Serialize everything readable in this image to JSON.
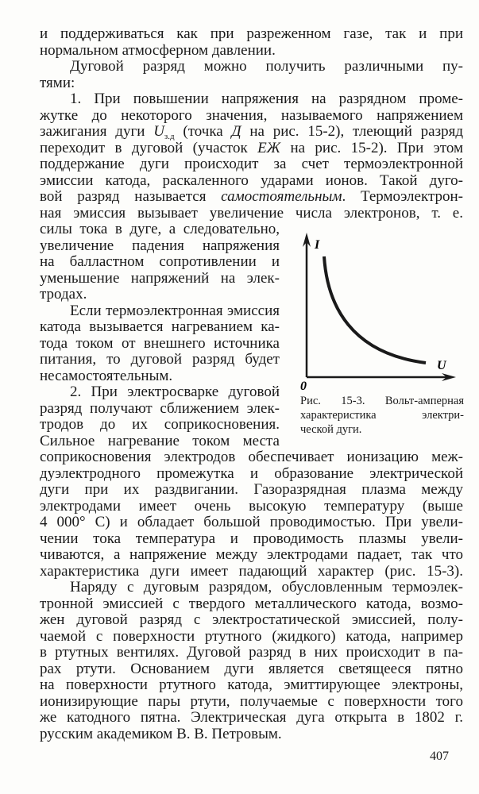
{
  "page": {
    "lines": [
      {
        "seg": [
          {
            "t": "и поддерживаться как при разреженном газе, так и при"
          }
        ]
      },
      {
        "seg": [
          {
            "t": "нормальном атмосферном давлении."
          }
        ],
        "last": true
      },
      {
        "seg": [
          {
            "t": "Дуговой разряд можно получить различными пу-"
          }
        ],
        "ind": true
      },
      {
        "seg": [
          {
            "t": "тями:"
          }
        ],
        "last": true
      },
      {
        "seg": [
          {
            "t": "1. При повышении напряжения на разрядном проме-"
          }
        ],
        "ind": true
      },
      {
        "seg": [
          {
            "t": "жутке до некоторого значения, называемого напряжением"
          }
        ]
      },
      {
        "seg": [
          {
            "t": "зажигания дуги "
          },
          {
            "t": "U",
            "s": "i"
          },
          {
            "t": "з.д",
            "s": "sub"
          },
          {
            "t": " (точка "
          },
          {
            "t": "Д",
            "s": "i"
          },
          {
            "t": " на рис. 15-2), тлеющий разряд"
          }
        ]
      },
      {
        "seg": [
          {
            "t": "переходит в дуговой (участок "
          },
          {
            "t": "ЕЖ",
            "s": "i"
          },
          {
            "t": " на рис. 15-2). При этом"
          }
        ]
      },
      {
        "seg": [
          {
            "t": "поддержание дуги происходит за счет термоэлектронной"
          }
        ]
      },
      {
        "seg": [
          {
            "t": "эмиссии катода, раскаленного ударами ионов. Такой дуго-"
          }
        ]
      },
      {
        "seg": [
          {
            "t": "вой разряд называется "
          },
          {
            "t": "самостоятельным",
            "s": "i"
          },
          {
            "t": ". Термоэлектрон-"
          }
        ]
      },
      {
        "seg": [
          {
            "t": "ная эмиссия вызывает увеличение числа электронов, т. е."
          }
        ]
      },
      {
        "seg": [
          {
            "t": "силы тока в дуге, а следовательно,"
          }
        ],
        "narrow": true
      },
      {
        "seg": [
          {
            "t": "увеличение падения напряжения"
          }
        ],
        "narrow": true
      },
      {
        "seg": [
          {
            "t": "на балластном сопротивлении и"
          }
        ],
        "narrow": true
      },
      {
        "seg": [
          {
            "t": "уменьшение напряжений на элек-"
          }
        ],
        "narrow": true
      },
      {
        "seg": [
          {
            "t": "тродах."
          }
        ],
        "narrow": true,
        "last": true
      },
      {
        "seg": [
          {
            "t": "Если термоэлектронная эмиссия"
          }
        ],
        "narrow": true,
        "ind": true
      },
      {
        "seg": [
          {
            "t": "катода вызывается нагреванием ка-"
          }
        ],
        "narrow": true
      },
      {
        "seg": [
          {
            "t": "тода током от внешнего источника"
          }
        ],
        "narrow": true
      },
      {
        "seg": [
          {
            "t": "питания, то дуговой разряд будет"
          }
        ],
        "narrow": true
      },
      {
        "seg": [
          {
            "t": "несамостоятельным."
          }
        ],
        "narrow": true,
        "last": true
      },
      {
        "seg": [
          {
            "t": "2. При электросварке дуговой"
          }
        ],
        "narrow": true,
        "ind": true
      },
      {
        "seg": [
          {
            "t": "разряд получают сближением элек-"
          }
        ],
        "narrow": true
      },
      {
        "seg": [
          {
            "t": "тродов до их соприкосновения."
          }
        ],
        "narrow": true
      },
      {
        "seg": [
          {
            "t": "Сильное нагревание током места"
          }
        ],
        "narrow": true
      },
      {
        "seg": [
          {
            "t": "соприкосновения электродов обеспечивает ионизацию меж-"
          }
        ]
      },
      {
        "seg": [
          {
            "t": "дуэлектродного промежутка и образование электрической"
          }
        ]
      },
      {
        "seg": [
          {
            "t": "дуги при их раздвигании. Газоразрядная плазма между"
          }
        ]
      },
      {
        "seg": [
          {
            "t": "электродами имеет очень высокую температуру (выше"
          }
        ]
      },
      {
        "seg": [
          {
            "t": "4 000° С) и обладает большой проводимостью. При увели-"
          }
        ]
      },
      {
        "seg": [
          {
            "t": "чении тока температура и проводимость плазмы увели-"
          }
        ]
      },
      {
        "seg": [
          {
            "t": "чиваются, а напряжение между электродами падает, так что"
          }
        ]
      },
      {
        "seg": [
          {
            "t": "характеристика дуги имеет падающий характер (рис. 15-3)."
          }
        ]
      },
      {
        "seg": [
          {
            "t": "Наряду с дуговым разрядом, обусловленным термоэлек-"
          }
        ],
        "ind": true
      },
      {
        "seg": [
          {
            "t": "тронной эмиссией с твердого металлического катода, возмо-"
          }
        ]
      },
      {
        "seg": [
          {
            "t": "жен дуговой разряд с электростатической эмиссией, полу-"
          }
        ]
      },
      {
        "seg": [
          {
            "t": "чаемой с поверхности ртутного (жидкого) катода, например"
          }
        ]
      },
      {
        "seg": [
          {
            "t": "в ртутных вентилях. Дуговой разряд в них происходит в па-"
          }
        ]
      },
      {
        "seg": [
          {
            "t": "рах ртути. Основанием дуги является светящееся пятно"
          }
        ]
      },
      {
        "seg": [
          {
            "t": "на поверхности ртутного катода, эмиттирующее электроны,"
          }
        ]
      },
      {
        "seg": [
          {
            "t": "ионизирующие пары ртути, получаемые с поверхности того"
          }
        ]
      },
      {
        "seg": [
          {
            "t": "же катодного пятна. Электрическая дуга открыта в 1802 г."
          }
        ]
      },
      {
        "seg": [
          {
            "t": "русским академиком В. В. Петровым."
          }
        ],
        "last": true
      }
    ],
    "figure": {
      "y_axis_label": "I",
      "x_axis_label": "U",
      "origin_label": "0",
      "caption": [
        "Рис. 15-3. Вольт-амперная",
        "характеристика электри-",
        "ческой дуги."
      ]
    },
    "page_number": "407"
  }
}
